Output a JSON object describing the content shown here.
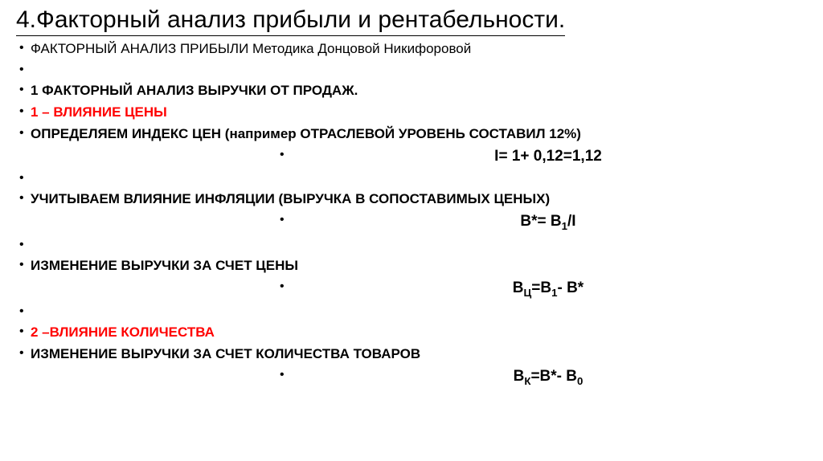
{
  "title": "4.Факторный анализ прибыли и рентабельности.",
  "items": {
    "line1": "ФАКТОРНЫЙ АНАЛИЗ ПРИБЫЛИ Методика Донцовой Никифоровой",
    "line3": "1 ФАКТОРНЫЙ АНАЛИЗ ВЫРУЧКИ ОТ ПРОДАЖ.",
    "line4": "1 – ВЛИЯНИЕ ЦЕНЫ",
    "line5": "ОПРЕДЕЛЯЕМ ИНДЕКС ЦЕН (например ОТРАСЛЕВОЙ УРОВЕНЬ СОСТАВИЛ 12%)",
    "formula1": "I= 1+ 0,12=1,12",
    "line7": " УЧИТЫВАЕМ ВЛИЯНИЕ ИНФЛЯЦИИ (ВЫРУЧКА В СОПОСТАВИМЫХ ЦЕНЫХ)",
    "formula2_pre": "В*= В",
    "formula2_sub": "1",
    "formula2_post": "/I",
    "line9": "ИЗМЕНЕНИЕ ВЫРУЧКИ ЗА СЧЕТ ЦЕНЫ",
    "formula3_pre1": "В",
    "formula3_sub1": "Ц",
    "formula3_mid": "=В",
    "formula3_sub2": "1",
    "formula3_post": "- В*",
    "line11": "2 –ВЛИЯНИЕ КОЛИЧЕСТВА",
    "line12": "ИЗМЕНЕНИЕ ВЫРУЧКИ ЗА СЧЕТ КОЛИЧЕСТВА ТОВАРОВ",
    "formula4_pre1": "В",
    "formula4_sub1": "К",
    "formula4_mid": "=В*- В",
    "formula4_sub2": "0"
  },
  "colors": {
    "text_black": "#000000",
    "text_red": "#ff0000",
    "background": "#ffffff"
  },
  "typography": {
    "title_fontsize": 30,
    "body_fontsize": 17,
    "formula_fontsize": 19
  }
}
